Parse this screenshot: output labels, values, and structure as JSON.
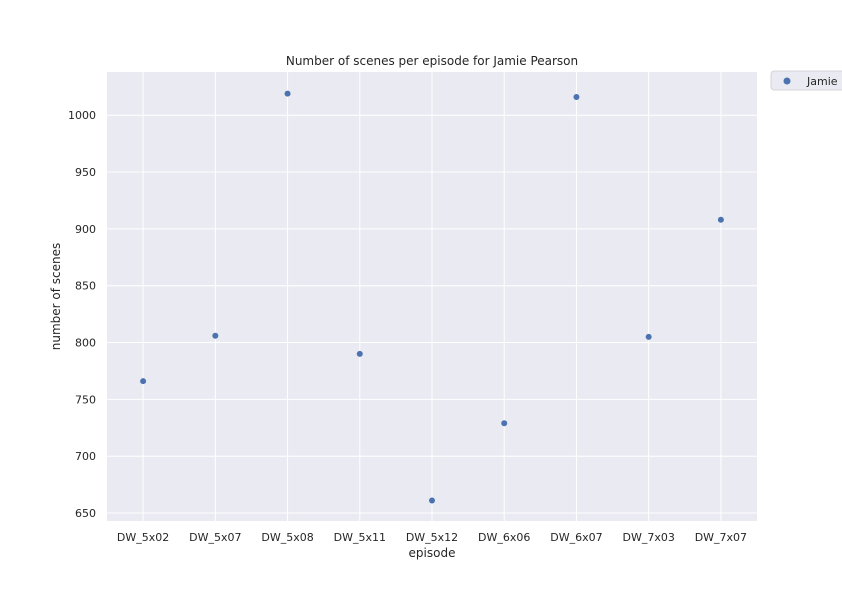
{
  "chart_data": {
    "type": "scatter",
    "title": "Number of scenes per episode for Jamie Pearson",
    "xlabel": "episode",
    "ylabel": "number of scenes",
    "categories": [
      "DW_5x02",
      "DW_5x07",
      "DW_5x08",
      "DW_5x11",
      "DW_5x12",
      "DW_6x06",
      "DW_6x07",
      "DW_7x03",
      "DW_7x07"
    ],
    "series": [
      {
        "name": "Jamie Pearson",
        "color": "#4c72b0",
        "values": [
          766,
          806,
          1019,
          790,
          661,
          729,
          1016,
          805,
          908
        ]
      }
    ],
    "ylim": [
      643,
      1038
    ],
    "yticks": [
      650,
      700,
      750,
      800,
      850,
      900,
      950,
      1000
    ],
    "grid": true,
    "legend_position": "outside-top-right",
    "plot_background": "#eaeaf2",
    "grid_color": "#ffffff"
  }
}
